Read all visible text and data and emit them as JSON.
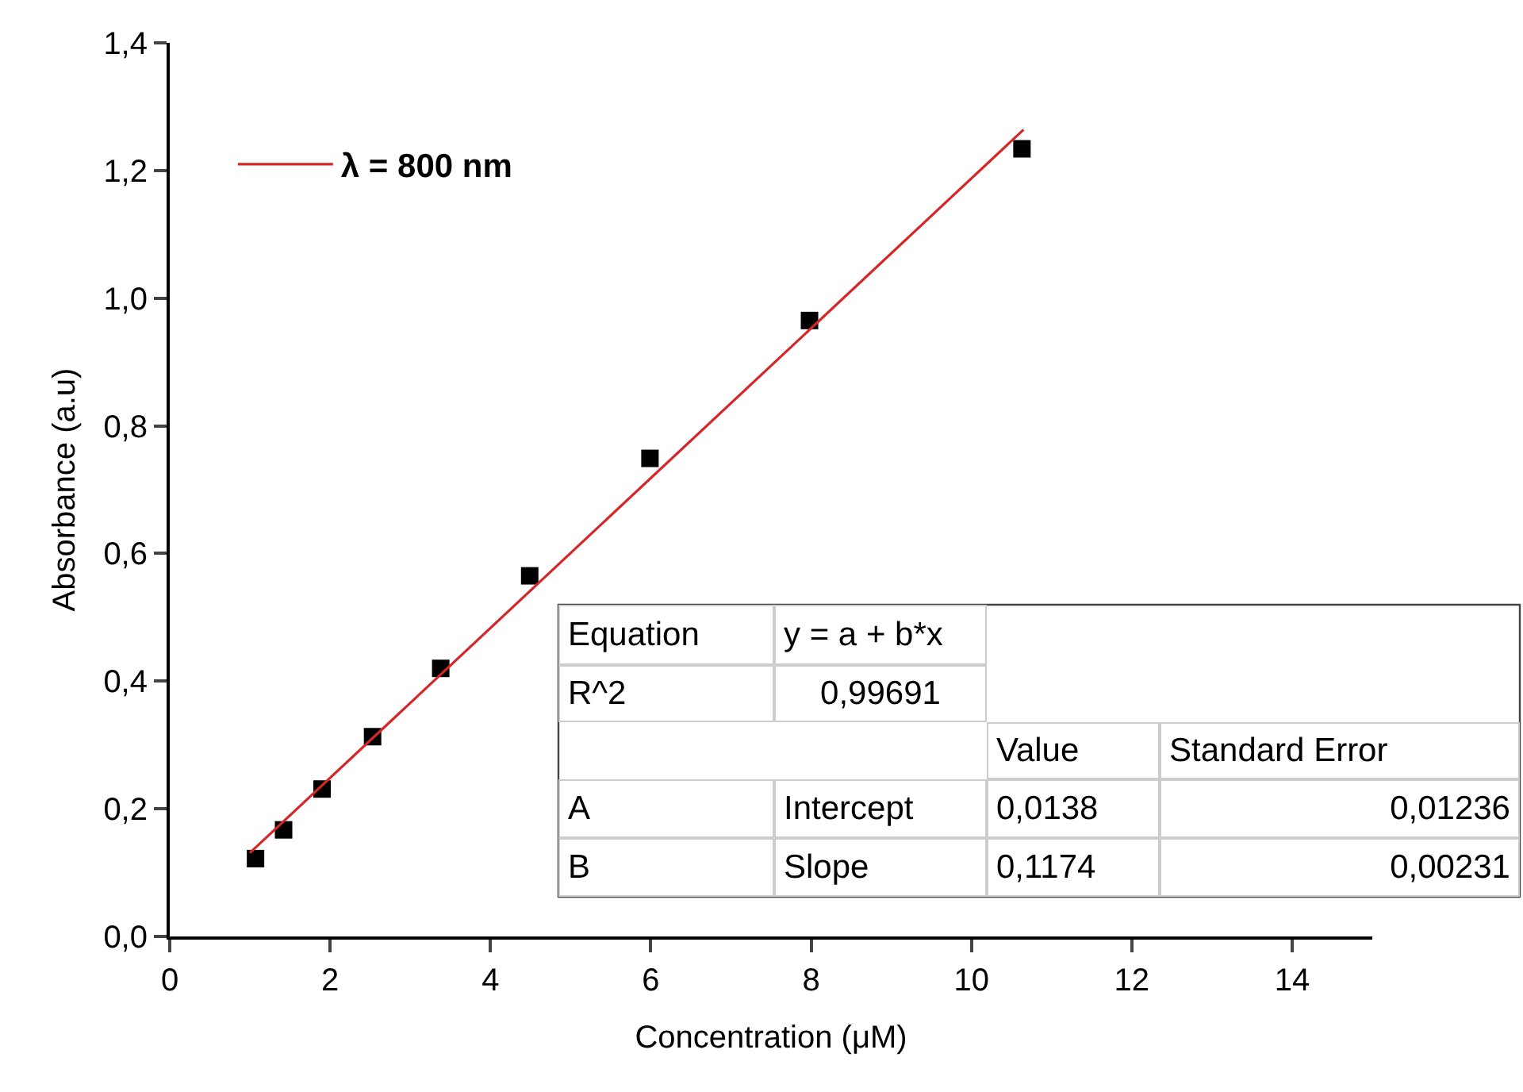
{
  "chart_data": {
    "type": "scatter",
    "xlabel": "Concentration (μM)",
    "ylabel": "Absorbance (a.u)",
    "series": [
      {
        "color": "#000000",
        "marker": "square",
        "x": [
          1.07,
          1.42,
          1.9,
          2.53,
          3.38,
          4.49,
          5.99,
          7.98,
          10.63
        ],
        "values": [
          0.122,
          0.167,
          0.231,
          0.313,
          0.42,
          0.565,
          0.749,
          0.965,
          1.234
        ]
      },
      {
        "type": "line",
        "name": "λ = 800 nm",
        "color": "#d62728",
        "line_style": "solid",
        "x": [
          1.0,
          10.65
        ],
        "values": [
          0.131,
          1.264
        ]
      }
    ],
    "xlim": [
      0,
      15
    ],
    "xticks": [
      0,
      2,
      4,
      6,
      8,
      10,
      12,
      14
    ],
    "ylim": [
      0,
      1.4
    ],
    "yticks": [
      {
        "value": 0,
        "label": "0,0"
      },
      {
        "value": 0.2,
        "label": "0,2"
      },
      {
        "value": 0.4,
        "label": "0,4"
      },
      {
        "value": 0.6,
        "label": "0,6"
      },
      {
        "value": 0.8,
        "label": "0,8"
      },
      {
        "value": 1.0,
        "label": "1,0"
      },
      {
        "value": 1.2,
        "label": "1,2"
      },
      {
        "value": 1.4,
        "label": "1,4"
      }
    ],
    "legend": "top left",
    "annotations": [
      "Equation",
      "y = a + b*x",
      "R^2",
      "0,99691",
      "Value",
      "Standard Error",
      "A",
      "Intercept",
      "0,0138",
      "0,01236",
      "B",
      "Slope",
      "0,1174",
      "0,00231"
    ]
  }
}
